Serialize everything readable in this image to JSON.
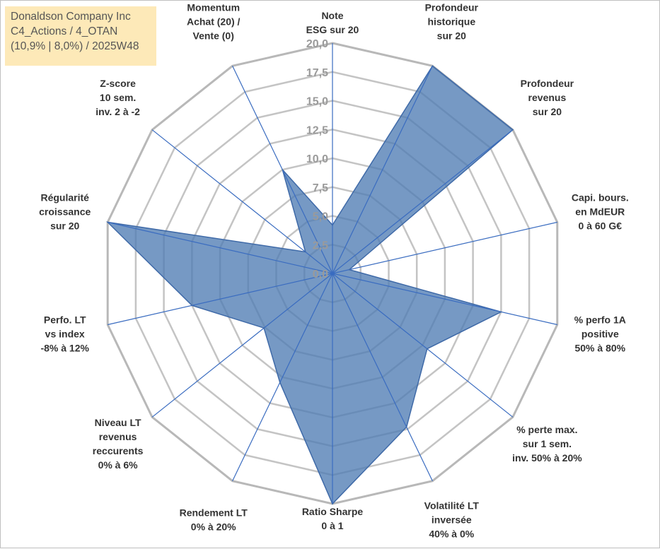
{
  "info_box": {
    "line1": "Donaldson Company Inc",
    "line2": "C4_Actions / 4_OTAN",
    "line3": "(10,9% | 8,0%) / 2025W48"
  },
  "colors": {
    "fill": "#4f7cb4",
    "stroke": "#3f6aa8",
    "spoke": "#3a6cc0",
    "ring": "#c4c4c4",
    "ring_outer": "#b8b8b8",
    "info_bg": "#fde9b8"
  },
  "chart_data": {
    "type": "radar",
    "r_range": [
      0,
      20
    ],
    "r_step": 2.5,
    "ticks": [
      "0,0",
      "2,5",
      "5,0",
      "7,5",
      "10,0",
      "12,5",
      "15,0",
      "17,5",
      "20,0"
    ],
    "grid": true,
    "legend": "none",
    "axes": [
      {
        "lines": [
          "Note",
          "ESG sur 20"
        ],
        "value": 4.2
      },
      {
        "lines": [
          "Profondeur",
          "historique",
          "sur 20"
        ],
        "value": 20
      },
      {
        "lines": [
          "Profondeur",
          "revenus",
          "sur 20"
        ],
        "value": 20
      },
      {
        "lines": [
          "Capi. bours.",
          "en MdEUR",
          "0 à 60 G€"
        ],
        "value": 1.5
      },
      {
        "lines": [
          "% perfo 1A",
          "positive",
          "50% à 80%"
        ],
        "value": 15
      },
      {
        "lines": [
          "% perte max.",
          "sur 1 sem.",
          "inv. 50% à 20%"
        ],
        "value": 10.5
      },
      {
        "lines": [
          "Volatilité LT",
          "inversée",
          "40% à 0%"
        ],
        "value": 14.8
      },
      {
        "lines": [
          "Ratio Sharpe",
          "0 à 1"
        ],
        "value": 20
      },
      {
        "lines": [
          "Rendement LT",
          "0% à 20%"
        ],
        "value": 10.5
      },
      {
        "lines": [
          "Niveau LT",
          "revenus",
          "reccurents",
          "0% à 6%"
        ],
        "value": 7.6
      },
      {
        "lines": [
          "Perfo. LT",
          "vs index",
          "-8% à 12%"
        ],
        "value": 12.5
      },
      {
        "lines": [
          "Régularité",
          "croissance",
          "sur 20"
        ],
        "value": 20
      },
      {
        "lines": [
          "Z-score",
          "10 sem.",
          "inv. 2 à -2"
        ],
        "value": 3.0
      },
      {
        "lines": [
          "Momentum",
          "Achat (20) /",
          "Vente (0)"
        ],
        "value": 10.0
      }
    ]
  }
}
